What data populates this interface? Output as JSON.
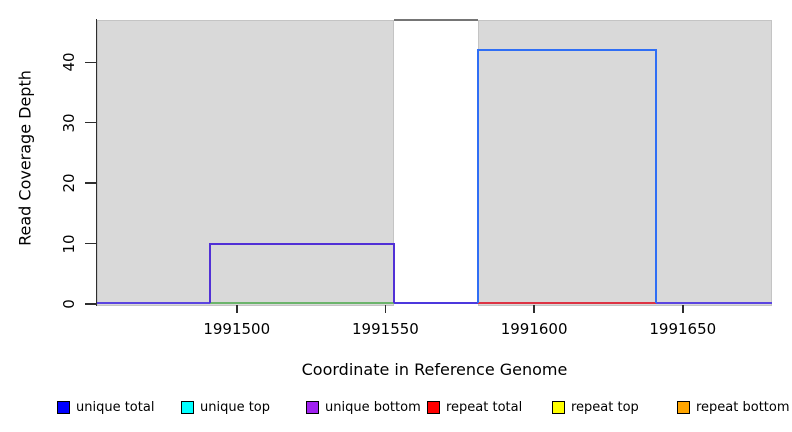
{
  "chart_data": {
    "type": "line",
    "subtype": "genome-coverage-step",
    "title": "",
    "xlabel": "Coordinate in Reference Genome",
    "ylabel": "Read Coverage Depth",
    "xlim": [
      1991453,
      1991680
    ],
    "ylim": [
      0,
      47
    ],
    "grid": false,
    "x_ticks": [
      "1991500",
      "1991550",
      "1991600",
      "1991650"
    ],
    "x_tick_values": [
      1991500,
      1991550,
      1991600,
      1991650
    ],
    "y_ticks": [
      "0",
      "10",
      "20",
      "30",
      "40"
    ],
    "y_tick_values": [
      0,
      10,
      20,
      30,
      40
    ],
    "background_regions": [
      {
        "name": "aligned-region-left",
        "x1": 1991453,
        "x2": 1991553,
        "fill": "#d9d9d9",
        "border": "#c4c4c4"
      },
      {
        "name": "aligned-region-right",
        "x1": 1991581,
        "x2": 1991680,
        "fill": "#d9d9d9",
        "border": "#c4c4c4"
      }
    ],
    "clipped_bar": {
      "x1": 1991553,
      "x2": 1991581,
      "note": "white gap whose coverage exceeds the y range; top edge drawn at plot top",
      "line_color": "#757575"
    },
    "coverage_blocks": [
      {
        "name": "unique bottom block",
        "x1": 1991491,
        "x2": 1991553,
        "depth": 10,
        "outline": "#5130d6"
      },
      {
        "name": "unique total block",
        "x1": 1991581,
        "x2": 1991641,
        "depth": 42,
        "outline": "#2f6ef5"
      }
    ],
    "baseline_segments": [
      {
        "x1": 1991453,
        "x2": 1991491,
        "color": "#5b45e0"
      },
      {
        "x1": 1991491,
        "x2": 1991553,
        "color": "#6cb46c"
      },
      {
        "x1": 1991553,
        "x2": 1991581,
        "color": "#4c38dd"
      },
      {
        "x1": 1991581,
        "x2": 1991641,
        "color": "#dd3344"
      },
      {
        "x1": 1991641,
        "x2": 1991680,
        "color": "#5b45e0"
      }
    ],
    "legend": {
      "position": "bottom",
      "entries": [
        {
          "label": "unique total",
          "color": "#0000ff"
        },
        {
          "label": "unique top",
          "color": "#00ffff"
        },
        {
          "label": "unique bottom",
          "color": "#a020f0"
        },
        {
          "label": "repeat total",
          "color": "#ff0000"
        },
        {
          "label": "repeat top",
          "color": "#ffff00"
        },
        {
          "label": "repeat bottom",
          "color": "#ffa500"
        }
      ]
    }
  }
}
